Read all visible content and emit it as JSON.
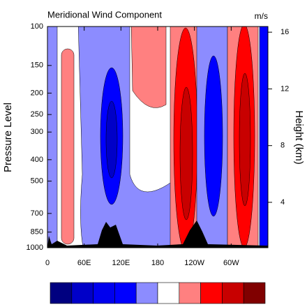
{
  "chart_data": {
    "type": "contour",
    "title": "Meridional Wind Component",
    "units": "m/s",
    "ylabel": "Pressure Level",
    "y2label": "Height (km)",
    "xlim": [
      0,
      360
    ],
    "xticks": [
      0,
      {
        "value": 60,
        "label": "60E"
      },
      {
        "value": 120,
        "label": "120E"
      },
      180,
      {
        "value": 240,
        "label": "120W"
      },
      {
        "value": 300,
        "label": "60W"
      }
    ],
    "ylim": [
      1000,
      100
    ],
    "ylog": true,
    "yticks": [
      100,
      150,
      200,
      250,
      300,
      400,
      500,
      700,
      850,
      1000
    ],
    "y2lim": [
      0.8,
      16.4
    ],
    "y2ticks": [
      4,
      8,
      12,
      16
    ],
    "colorbar": [
      "#000080",
      "#0000c8",
      "#0000ee",
      "#0000ff",
      "#8c8cff",
      "#ffffff",
      "#ff8080",
      "#ff0000",
      "#c80000",
      "#800000"
    ]
  }
}
